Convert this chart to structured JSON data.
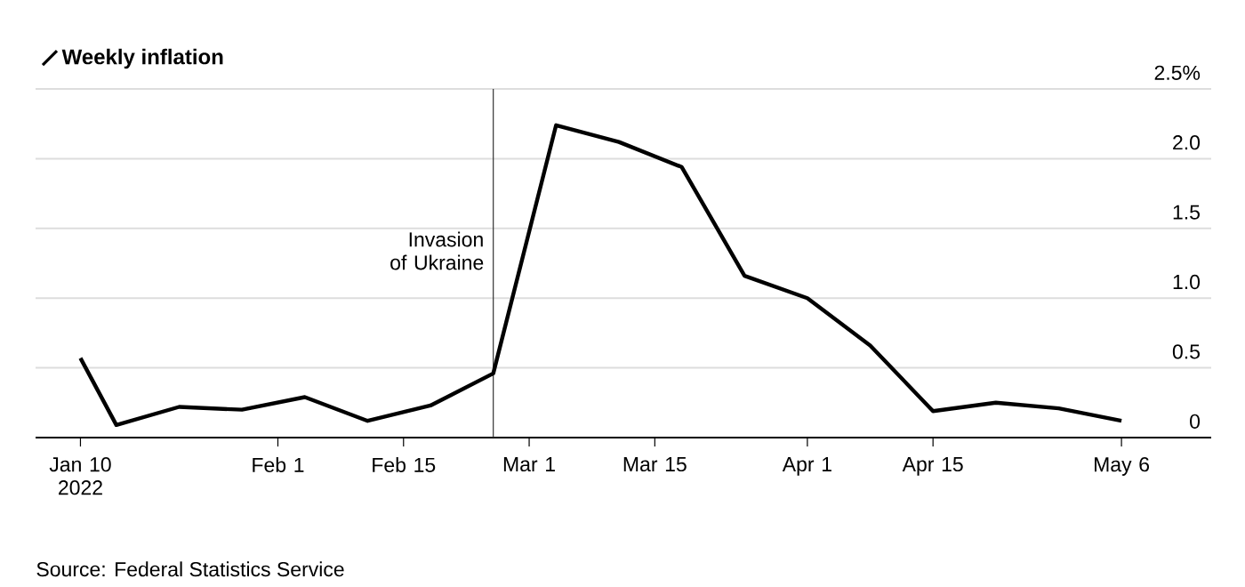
{
  "chart_data": {
    "type": "line",
    "x": [
      "2022-01-10",
      "2022-01-14",
      "2022-01-21",
      "2022-01-28",
      "2022-02-04",
      "2022-02-11",
      "2022-02-18",
      "2022-02-25",
      "2022-03-04",
      "2022-03-11",
      "2022-03-18",
      "2022-03-25",
      "2022-04-01",
      "2022-04-08",
      "2022-04-15",
      "2022-04-22",
      "2022-04-29",
      "2022-05-06"
    ],
    "series": [
      {
        "name": "Weekly inflation",
        "color": "#000000",
        "values": [
          0.57,
          0.09,
          0.22,
          0.2,
          0.29,
          0.12,
          0.23,
          0.46,
          2.24,
          2.12,
          1.94,
          1.16,
          1.0,
          0.66,
          0.19,
          0.25,
          0.21,
          0.12
        ]
      }
    ],
    "xlim": [
      "2022-01-05",
      "2022-05-16"
    ],
    "xticks": [
      {
        "value": "2022-01-10",
        "label": "Jan 10 2022"
      },
      {
        "value": "2022-02-01",
        "label": "Feb 1"
      },
      {
        "value": "2022-02-15",
        "label": "Feb 15"
      },
      {
        "value": "2022-03-01",
        "label": "Mar 1"
      },
      {
        "value": "2022-03-15",
        "label": "Mar 15"
      },
      {
        "value": "2022-04-01",
        "label": "Apr 1"
      },
      {
        "value": "2022-04-15",
        "label": "Apr 15"
      },
      {
        "value": "2022-05-06",
        "label": "May 6"
      }
    ],
    "ylim": [
      0,
      2.5
    ],
    "yticks": [
      0,
      0.5,
      {
        "value": 1,
        "label": "1.0"
      },
      1.5,
      {
        "value": 2,
        "label": "2.0"
      },
      {
        "value": 2.5,
        "label": "2.5%"
      }
    ],
    "ref_lines": [
      {
        "axis": "x",
        "value": "2022-02-25",
        "label": "Invasion of Ukraine",
        "color": "#333333"
      }
    ],
    "grid": "y",
    "legend": "top left",
    "line_style": "solid",
    "annotations": [
      "Source: Federal Statistics Service"
    ]
  }
}
